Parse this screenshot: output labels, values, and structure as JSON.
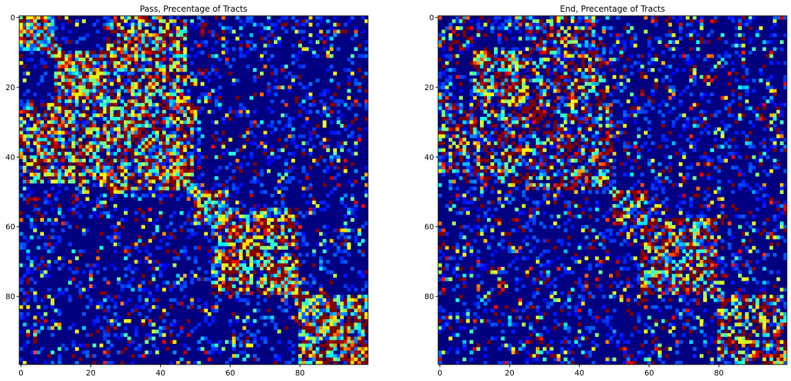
{
  "chart_data": [
    {
      "type": "heatmap",
      "title": "Pass, Precentage of Tracts",
      "rows": 100,
      "cols": 100,
      "colormap": "jet",
      "vmin": 0,
      "vmax": 1,
      "xticks": [
        0,
        20,
        40,
        60,
        80
      ],
      "yticks": [
        0,
        20,
        40,
        60,
        80
      ],
      "grid": false,
      "blocks": [
        {
          "rows": [
            0,
            10
          ],
          "cols": [
            0,
            10
          ],
          "density": 0.8
        },
        {
          "rows": [
            10,
            25
          ],
          "cols": [
            10,
            25
          ],
          "density": 0.85
        },
        {
          "rows": [
            25,
            48
          ],
          "cols": [
            0,
            50
          ],
          "density": 0.7
        },
        {
          "rows": [
            35,
            48
          ],
          "cols": [
            35,
            48
          ],
          "density": 0.85
        },
        {
          "rows": [
            50,
            58
          ],
          "cols": [
            50,
            60
          ],
          "density": 0.9
        },
        {
          "rows": [
            58,
            80
          ],
          "cols": [
            55,
            80
          ],
          "density": 0.75
        },
        {
          "rows": [
            80,
            100
          ],
          "cols": [
            80,
            100
          ],
          "density": 0.8
        }
      ],
      "diagonal": true,
      "seed": 7
    },
    {
      "type": "heatmap",
      "title": "End, Precentage of Tracts",
      "rows": 100,
      "cols": 100,
      "colormap": "jet",
      "vmin": 0,
      "vmax": 1,
      "xticks": [
        0,
        20,
        40,
        60,
        80
      ],
      "yticks": [
        0,
        20,
        40,
        60,
        80
      ],
      "grid": false,
      "blocks": [
        {
          "rows": [
            0,
            8
          ],
          "cols": [
            0,
            10
          ],
          "density": 0.4
        },
        {
          "rows": [
            10,
            25
          ],
          "cols": [
            10,
            25
          ],
          "density": 0.75
        },
        {
          "rows": [
            25,
            48
          ],
          "cols": [
            0,
            50
          ],
          "density": 0.5
        },
        {
          "rows": [
            50,
            58
          ],
          "cols": [
            50,
            60
          ],
          "density": 0.6
        },
        {
          "rows": [
            58,
            80
          ],
          "cols": [
            58,
            80
          ],
          "density": 0.7
        },
        {
          "rows": [
            80,
            100
          ],
          "cols": [
            80,
            100
          ],
          "density": 0.65
        }
      ],
      "diagonal": false,
      "seed": 23
    }
  ]
}
